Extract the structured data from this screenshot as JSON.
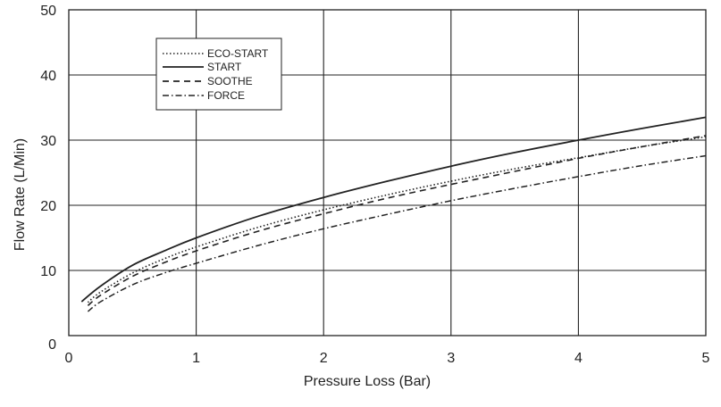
{
  "chart_data": {
    "type": "line",
    "xlabel": "Pressure Loss (Bar)",
    "ylabel": "Flow Rate (L/Min)",
    "xlim": [
      0,
      5
    ],
    "ylim": [
      0,
      50
    ],
    "xticks": [
      "0",
      "1",
      "2",
      "3",
      "4",
      "5"
    ],
    "yticks": [
      "0",
      "10",
      "20",
      "30",
      "40",
      "50"
    ],
    "grid": true,
    "legend_position": "top-left",
    "series": [
      {
        "name": "ECO-START",
        "style": "dotted",
        "x": [
          0.15,
          0.25,
          0.5,
          0.75,
          1.0,
          1.5,
          2.0,
          2.5,
          3.0,
          3.5,
          4.0,
          4.5,
          5.0
        ],
        "y": [
          5.1,
          6.7,
          9.6,
          11.8,
          13.6,
          16.7,
          19.3,
          21.6,
          23.7,
          25.6,
          27.3,
          29.0,
          30.5
        ]
      },
      {
        "name": "START",
        "style": "solid",
        "x": [
          0.1,
          0.25,
          0.5,
          0.75,
          1.0,
          1.5,
          2.0,
          2.5,
          3.0,
          3.5,
          4.0,
          4.5,
          5.0
        ],
        "y": [
          5.2,
          7.6,
          10.8,
          13.0,
          15.0,
          18.4,
          21.2,
          23.7,
          26.0,
          28.1,
          30.0,
          31.8,
          33.5
        ]
      },
      {
        "name": "SOOTHE",
        "style": "dashed",
        "x": [
          0.15,
          0.25,
          0.5,
          0.75,
          1.0,
          1.5,
          2.0,
          2.5,
          3.0,
          3.5,
          4.0,
          4.5,
          5.0
        ],
        "y": [
          4.6,
          6.2,
          9.1,
          11.2,
          13.0,
          16.1,
          18.7,
          21.1,
          23.2,
          25.2,
          27.2,
          29.0,
          30.7
        ]
      },
      {
        "name": "FORCE",
        "style": "dashdot",
        "x": [
          0.15,
          0.25,
          0.5,
          0.75,
          1.0,
          1.5,
          2.0,
          2.5,
          3.0,
          3.5,
          4.0,
          4.5,
          5.0
        ],
        "y": [
          3.7,
          5.2,
          7.8,
          9.6,
          11.1,
          13.9,
          16.4,
          18.6,
          20.7,
          22.6,
          24.4,
          26.1,
          27.6
        ]
      }
    ]
  }
}
